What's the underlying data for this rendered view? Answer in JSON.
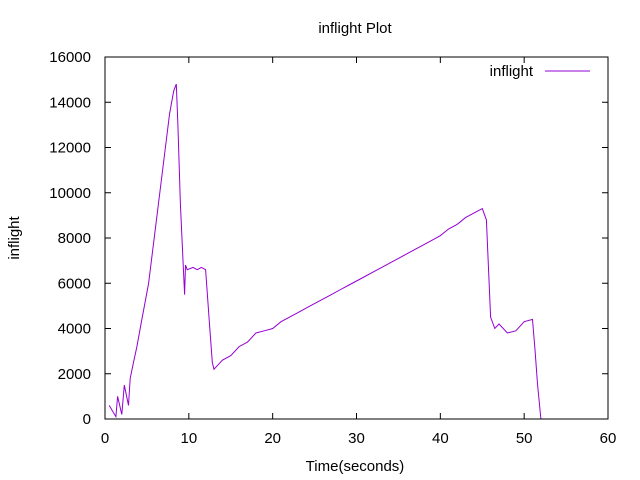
{
  "chart_data": {
    "type": "line",
    "title": "inflight Plot",
    "xlabel": "Time(seconds)",
    "ylabel": "inflight",
    "xlim": [
      0,
      60
    ],
    "ylim": [
      0,
      16000
    ],
    "xticks": [
      0,
      10,
      20,
      30,
      40,
      50,
      60
    ],
    "yticks": [
      0,
      2000,
      4000,
      6000,
      8000,
      10000,
      12000,
      14000,
      16000
    ],
    "grid": false,
    "legend_position": "top-right",
    "series": [
      {
        "name": "inflight",
        "color": "#9400d3",
        "x": [
          0.5,
          1.3,
          1.5,
          2.0,
          2.3,
          2.8,
          3.0,
          3.4,
          3.8,
          4.3,
          4.7,
          5.2,
          5.7,
          6.2,
          6.7,
          7.2,
          7.7,
          8.2,
          8.5,
          8.7,
          9.0,
          9.3,
          9.5,
          9.6,
          9.8,
          10.5,
          11.0,
          11.5,
          12.0,
          12.4,
          12.8,
          13.0,
          13.5,
          14.0,
          15.0,
          16.0,
          17.0,
          18.0,
          19.0,
          20.0,
          21.0,
          22.0,
          23.0,
          24.0,
          25.0,
          26.0,
          27.0,
          28.0,
          29.0,
          30.0,
          31.0,
          32.0,
          33.0,
          34.0,
          35.0,
          36.0,
          37.0,
          38.0,
          39.0,
          40.0,
          41.0,
          42.0,
          43.0,
          44.0,
          45.0,
          45.5,
          46.0,
          46.5,
          47.0,
          48.0,
          49.0,
          50.0,
          51.0,
          51.3,
          51.6,
          52.0
        ],
        "y": [
          600,
          100,
          1000,
          200,
          1500,
          600,
          1800,
          2500,
          3200,
          4200,
          5000,
          6000,
          7500,
          9000,
          10500,
          12000,
          13500,
          14500,
          14800,
          13000,
          9500,
          7000,
          5500,
          6800,
          6600,
          6700,
          6600,
          6700,
          6600,
          4500,
          2500,
          2200,
          2400,
          2600,
          2800,
          3200,
          3400,
          3800,
          3900,
          4000,
          4300,
          4500,
          4700,
          4900,
          5100,
          5300,
          5500,
          5700,
          5900,
          6100,
          6300,
          6500,
          6700,
          6900,
          7100,
          7300,
          7500,
          7700,
          7900,
          8100,
          8400,
          8600,
          8900,
          9100,
          9300,
          8800,
          4500,
          4000,
          4200,
          3800,
          3900,
          4300,
          4400,
          3000,
          1500,
          0
        ]
      }
    ]
  }
}
